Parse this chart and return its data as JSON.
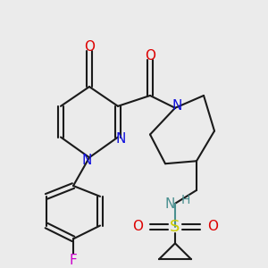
{
  "background": "#ebebeb",
  "bond_color": "#1a1a1a",
  "lw": 1.5,
  "atom_colors": {
    "N": "#1010dd",
    "O": "#dd0000",
    "S": "#cccc00",
    "F": "#cc00cc",
    "NH": "#4a9090",
    "H": "#4a9090"
  }
}
